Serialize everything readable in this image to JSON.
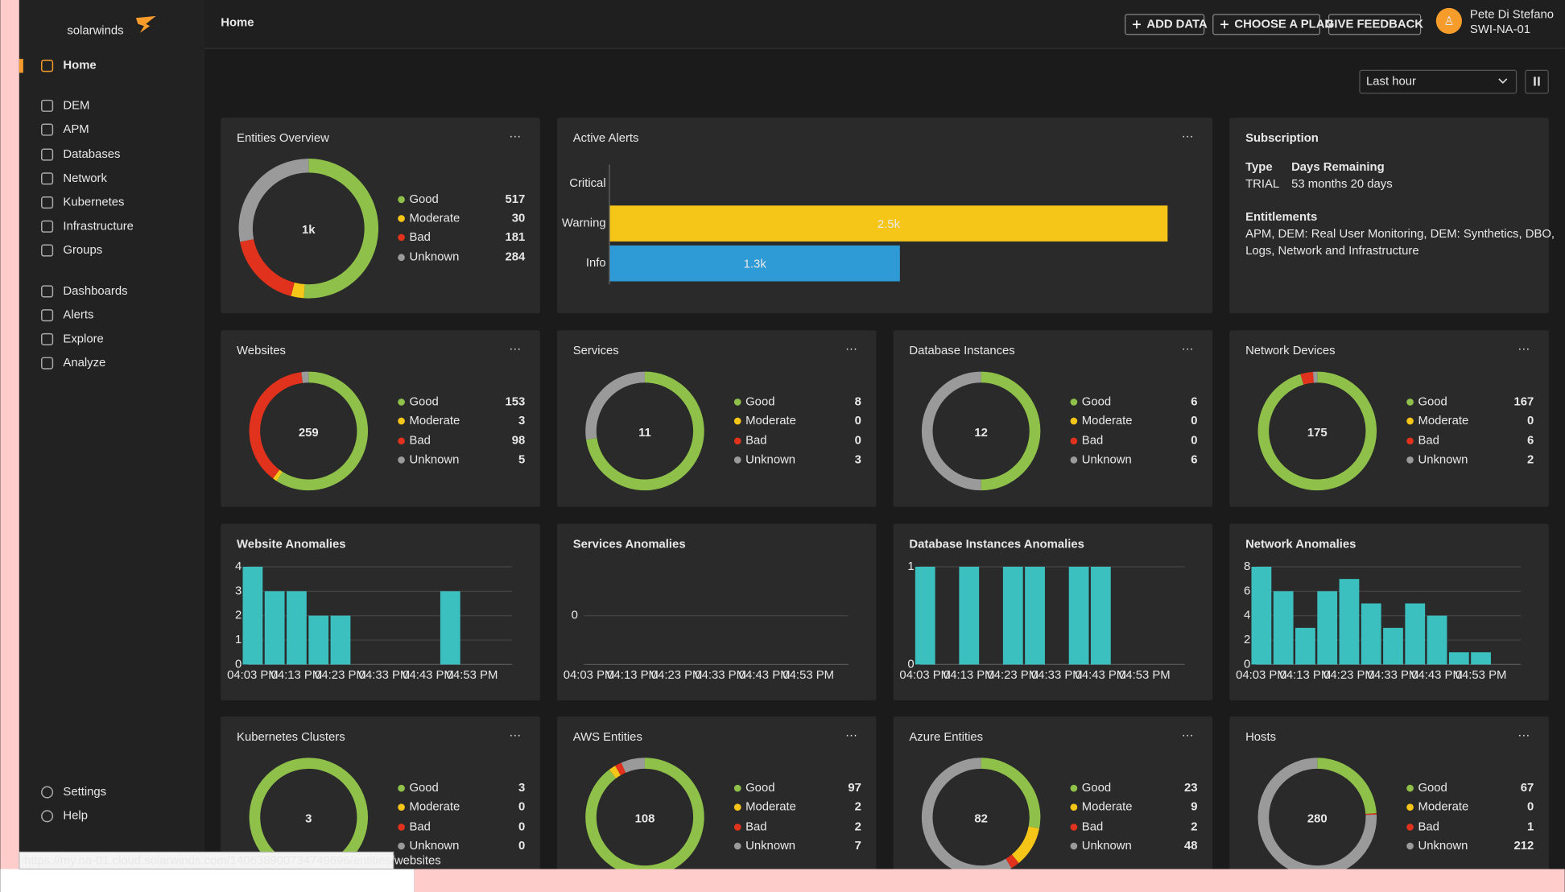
{
  "sidebar": {
    "brand": "solarwinds",
    "nav": [
      "Home",
      "DEM",
      "APM",
      "Databases",
      "Network",
      "Kubernetes",
      "Infrastructure",
      "Groups",
      "Dashboards",
      "Alerts",
      "Explore",
      "Analyze"
    ],
    "footer_nav": [
      "Settings",
      "Help"
    ]
  },
  "header": {
    "title": "Home",
    "actions": [
      "ADD DATA",
      "CHOOSE A PLAN",
      "GIVE FEEDBACK"
    ],
    "user_name": "Pete Di Stefano",
    "org": "SWI-NA-01"
  },
  "time_range": "Last hour",
  "status_colors": [
    "#8fc04a",
    "#f5c518",
    "#e0321c",
    "#9a9a9a"
  ],
  "entities_overview": {
    "title": "Entities Overview",
    "total": "1k",
    "statuses": [
      {
        "name": "Good",
        "value": 517
      },
      {
        "name": "Moderate",
        "value": 30
      },
      {
        "name": "Bad",
        "value": 181
      },
      {
        "name": "Unknown",
        "value": 284
      }
    ]
  },
  "active_alerts": {
    "title": "Active Alerts",
    "categories": [
      "Critical",
      "Warning",
      "Info"
    ],
    "values": [
      0,
      2500,
      1300
    ],
    "value_labels": [
      null,
      "2.5k",
      "1.3k"
    ],
    "colors": [
      "#e0321c",
      "#f5c518",
      "#2e9bd6"
    ],
    "xlim": [
      0,
      2650
    ]
  },
  "subscription": {
    "title": "Subscription",
    "type_label": "Type",
    "type": "TRIAL",
    "days_label": "Days Remaining",
    "days": "53 months 20 days",
    "entitlements_label": "Entitlements",
    "entitlements": [
      "APM, DEM: Real User Monitoring, DEM: Synthetics, DBO,",
      "Logs, Network and Infrastructure"
    ]
  },
  "status_widgets": [
    {
      "title": "Websites",
      "title_color": "#d993ad",
      "total": 259,
      "statuses": [
        {
          "name": "Good",
          "value": 153
        },
        {
          "name": "Moderate",
          "value": 3
        },
        {
          "name": "Bad",
          "value": 98
        },
        {
          "name": "Unknown",
          "value": 5
        }
      ]
    },
    {
      "title": "Services",
      "title_color": "#3ec1c9",
      "total": 11,
      "statuses": [
        {
          "name": "Good",
          "value": 8
        },
        {
          "name": "Moderate",
          "value": 0
        },
        {
          "name": "Bad",
          "value": 0
        },
        {
          "name": "Unknown",
          "value": 3
        }
      ]
    },
    {
      "title": "Database Instances",
      "title_color": "#3ec1c9",
      "total": 12,
      "statuses": [
        {
          "name": "Good",
          "value": 6
        },
        {
          "name": "Moderate",
          "value": 0
        },
        {
          "name": "Bad",
          "value": 0
        },
        {
          "name": "Unknown",
          "value": 6
        }
      ]
    },
    {
      "title": "Network Devices",
      "title_color": "#3ec1c9",
      "total": 175,
      "statuses": [
        {
          "name": "Good",
          "value": 167
        },
        {
          "name": "Moderate",
          "value": 0
        },
        {
          "name": "Bad",
          "value": 6
        },
        {
          "name": "Unknown",
          "value": 2
        }
      ]
    },
    {
      "title": "Kubernetes Clusters",
      "title_color": "#3ec1c9",
      "total": 3,
      "statuses": [
        {
          "name": "Good",
          "value": 3
        },
        {
          "name": "Moderate",
          "value": 0
        },
        {
          "name": "Bad",
          "value": 0
        },
        {
          "name": "Unknown",
          "value": 0
        }
      ]
    },
    {
      "title": "AWS Entities",
      "title_color": "#3ec1c9",
      "total": 108,
      "statuses": [
        {
          "name": "Good",
          "value": 97
        },
        {
          "name": "Moderate",
          "value": 2
        },
        {
          "name": "Bad",
          "value": 2
        },
        {
          "name": "Unknown",
          "value": 7
        }
      ]
    },
    {
      "title": "Azure Entities",
      "title_color": "#3ec1c9",
      "total": 82,
      "statuses": [
        {
          "name": "Good",
          "value": 23
        },
        {
          "name": "Moderate",
          "value": 9
        },
        {
          "name": "Bad",
          "value": 2
        },
        {
          "name": "Unknown",
          "value": 48
        }
      ]
    },
    {
      "title": "Hosts",
      "title_color": "#3ec1c9",
      "total": 280,
      "statuses": [
        {
          "name": "Good",
          "value": 67
        },
        {
          "name": "Moderate",
          "value": 0
        },
        {
          "name": "Bad",
          "value": 1
        },
        {
          "name": "Unknown",
          "value": 212
        }
      ]
    }
  ],
  "anomalies": [
    {
      "title": "Website Anomalies",
      "color": "#3bbfbf",
      "categories": [
        "04:03 PM",
        null,
        "04:13 PM",
        null,
        "04:23 PM",
        null,
        "04:33 PM",
        null,
        "04:43 PM",
        null,
        "04:53 PM",
        null
      ],
      "values": [
        4,
        3,
        3,
        2,
        2,
        0,
        0,
        0,
        0,
        3,
        0,
        0
      ],
      "ylim": [
        0,
        4
      ],
      "yticks": [
        0,
        1,
        2,
        3,
        4
      ]
    },
    {
      "title": "Services Anomalies",
      "color": "#3bbfbf",
      "categories": [
        "04:03 PM",
        null,
        "04:13 PM",
        null,
        "04:23 PM",
        null,
        "04:33 PM",
        null,
        "04:43 PM",
        null,
        "04:53 PM",
        null
      ],
      "values": [
        0,
        0,
        0,
        0,
        0,
        0,
        0,
        0,
        0,
        0,
        0,
        0
      ],
      "ylim": [
        -1,
        1
      ],
      "yticks": [
        0
      ]
    },
    {
      "title": "Database Instances Anomalies",
      "color": "#3bbfbf",
      "categories": [
        "04:03 PM",
        null,
        "04:13 PM",
        null,
        "04:23 PM",
        null,
        "04:33 PM",
        null,
        "04:43 PM",
        null,
        "04:53 PM",
        null
      ],
      "values": [
        1,
        0,
        1,
        0,
        1,
        1,
        0,
        1,
        1,
        0,
        0,
        0
      ],
      "ylim": [
        0,
        1
      ],
      "yticks": [
        0,
        1
      ]
    },
    {
      "title": "Network Anomalies",
      "color": "#3bbfbf",
      "categories": [
        "04:03 PM",
        null,
        "04:13 PM",
        null,
        "04:23 PM",
        null,
        "04:33 PM",
        null,
        "04:43 PM",
        null,
        "04:53 PM",
        null
      ],
      "values": [
        8,
        6,
        3,
        6,
        7,
        5,
        3,
        5,
        4,
        1,
        1,
        0
      ],
      "ylim": [
        0,
        8
      ],
      "yticks": [
        0,
        2,
        4,
        6,
        8
      ]
    }
  ],
  "status_url": "https://my.na-01.cloud.solarwinds.com/140638900734749696/entities/websites"
}
